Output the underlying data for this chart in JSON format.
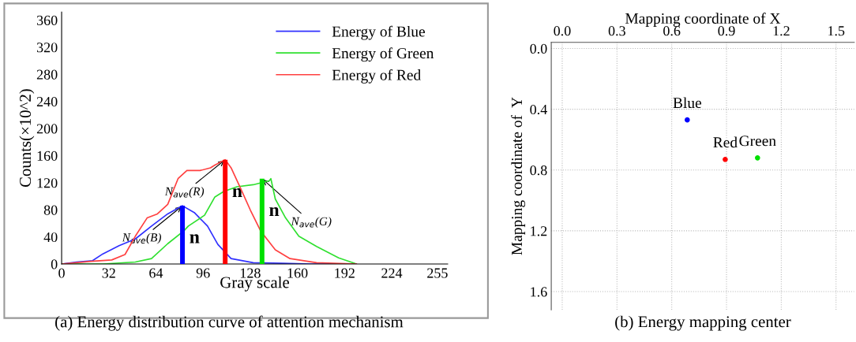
{
  "chart_data": [
    {
      "type": "line",
      "title": "(a) Energy distribution curve of attention mechanism",
      "xlabel": "Gray scale",
      "ylabel": "Counts(×10^2)",
      "xlim": [
        0,
        262
      ],
      "ylim": [
        0,
        372
      ],
      "xticks": [
        0,
        32,
        64,
        96,
        128,
        160,
        192,
        224,
        255
      ],
      "yticks": [
        0,
        40,
        80,
        120,
        160,
        200,
        240,
        280,
        320,
        360
      ],
      "grid": false,
      "legend": "top right",
      "series": [
        {
          "name": "Energy of Blue",
          "color": "#3030ff",
          "x": [
            0,
            10,
            21,
            28,
            39,
            50,
            61,
            72,
            82,
            90,
            99,
            106,
            115,
            130,
            150,
            170,
            200
          ],
          "values": [
            0,
            3,
            5,
            15,
            27,
            37,
            56,
            74,
            86,
            76,
            56,
            29,
            8,
            2,
            1,
            0,
            0
          ]
        },
        {
          "name": "Energy of Green",
          "color": "#30e030",
          "x": [
            0,
            28,
            50,
            61,
            72,
            83,
            86,
            97,
            104,
            110,
            119,
            130,
            141,
            142,
            145,
            152,
            161,
            173,
            188,
            199
          ],
          "values": [
            0,
            0,
            3,
            8,
            30,
            49,
            56,
            72,
            99,
            107,
            114,
            117,
            123,
            126,
            96,
            68,
            41,
            26,
            9,
            1
          ]
        },
        {
          "name": "Energy of Red",
          "color": "#ff4040",
          "x": [
            0,
            20,
            34,
            43,
            50,
            58,
            65,
            72,
            79,
            85,
            94,
            101,
            104,
            111,
            115,
            121,
            128,
            135,
            145,
            155,
            173,
            200
          ],
          "values": [
            0,
            4,
            6,
            14,
            41,
            68,
            74,
            88,
            126,
            138,
            138,
            142,
            146,
            154,
            142,
            114,
            80,
            49,
            21,
            8,
            2,
            0
          ]
        },
        {
          "type": "bar",
          "color": "#0000ff",
          "x": [
            82
          ],
          "values": [
            86
          ]
        },
        {
          "type": "bar",
          "color": "#ff0000",
          "x": [
            111
          ],
          "values": [
            154
          ]
        },
        {
          "type": "bar",
          "color": "#00e000",
          "x": [
            136
          ],
          "values": [
            126
          ]
        }
      ],
      "annotations": [
        {
          "text": "N$_{ave}$(B)",
          "x": 82,
          "y": 86
        },
        {
          "text": "n",
          "x": 82,
          "y": 86
        },
        {
          "text": "N$_{ave}$(R)",
          "x": 111,
          "y": 154
        },
        {
          "text": "n",
          "x": 111,
          "y": 154
        },
        {
          "text": "N$_{ave}$(G)",
          "x": 136,
          "y": 126
        },
        {
          "text": "n",
          "x": 136,
          "y": 126
        }
      ]
    },
    {
      "type": "scatter",
      "title": "(b) Energy mapping center",
      "xlabel": "Mapping coordinate of X",
      "ylabel": "Mapping coordinate of  Y",
      "xlim": [
        -0.06,
        1.6
      ],
      "ylim": [
        1.72,
        -0.04
      ],
      "xticks": [
        {
          "value": 0,
          "label": "0.0"
        },
        0.3,
        0.6,
        0.9,
        1.2,
        1.5
      ],
      "yticks": [
        {
          "value": 0,
          "label": "0.0"
        },
        0.4,
        0.8,
        1.2,
        1.6
      ],
      "grid": true,
      "marker": "circle",
      "series": [
        {
          "color": "#0000ff",
          "x": [
            0.685
          ],
          "values": [
            0.47
          ]
        },
        {
          "color": "#ff0000",
          "x": [
            0.893
          ],
          "values": [
            0.73
          ]
        },
        {
          "color": "#00e000",
          "x": [
            1.07
          ],
          "values": [
            0.72
          ]
        }
      ],
      "annotations": [
        {
          "text": "Blue",
          "x": 0.685,
          "y": 0.47
        },
        {
          "text": "Green",
          "x": 1.07,
          "y": 0.72
        },
        {
          "text": "Red",
          "x": 0.893,
          "y": 0.73
        }
      ]
    }
  ]
}
